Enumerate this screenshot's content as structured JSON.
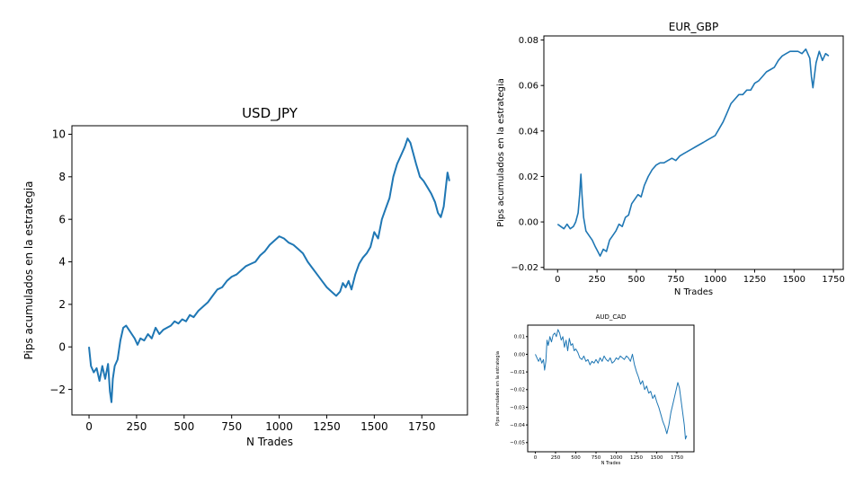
{
  "chart_data": [
    {
      "type": "line",
      "title": "USD_JPY",
      "xlabel": "N Trades",
      "ylabel": "Pips acumulados en la estrategia",
      "xlim": [
        -90,
        1990
      ],
      "ylim": [
        -3.2,
        10.4
      ],
      "xticks": [
        0,
        250,
        500,
        750,
        1000,
        1250,
        1500,
        1750
      ],
      "yticks": [
        -2,
        0,
        2,
        4,
        6,
        8,
        10
      ],
      "xtick_labels": [
        "0",
        "250",
        "500",
        "750",
        "1000",
        "1250",
        "1500",
        "1750"
      ],
      "ytick_labels": [
        "−2",
        "0",
        "2",
        "4",
        "6",
        "8",
        "10"
      ],
      "grid": false,
      "series": [
        {
          "color": "#1f77b4",
          "x": [
            0,
            10,
            25,
            40,
            55,
            70,
            85,
            100,
            110,
            118,
            125,
            135,
            150,
            165,
            180,
            195,
            210,
            225,
            240,
            255,
            270,
            290,
            310,
            330,
            350,
            370,
            390,
            410,
            430,
            450,
            470,
            490,
            510,
            530,
            550,
            575,
            600,
            625,
            650,
            675,
            700,
            725,
            750,
            775,
            800,
            825,
            850,
            875,
            900,
            925,
            950,
            975,
            1000,
            1025,
            1050,
            1075,
            1100,
            1125,
            1150,
            1175,
            1200,
            1225,
            1250,
            1275,
            1300,
            1320,
            1335,
            1350,
            1365,
            1380,
            1400,
            1420,
            1440,
            1460,
            1480,
            1500,
            1520,
            1540,
            1560,
            1580,
            1600,
            1620,
            1640,
            1660,
            1675,
            1690,
            1705,
            1720,
            1740,
            1760,
            1780,
            1800,
            1820,
            1835,
            1850,
            1865,
            1875,
            1885,
            1895
          ],
          "y": [
            0.0,
            -0.9,
            -1.2,
            -1.0,
            -1.6,
            -0.9,
            -1.5,
            -0.8,
            -2.1,
            -2.6,
            -1.5,
            -0.9,
            -0.6,
            0.3,
            0.9,
            1.0,
            0.8,
            0.6,
            0.4,
            0.1,
            0.4,
            0.3,
            0.6,
            0.4,
            0.9,
            0.6,
            0.8,
            0.9,
            1.0,
            1.2,
            1.1,
            1.3,
            1.2,
            1.5,
            1.4,
            1.7,
            1.9,
            2.1,
            2.4,
            2.7,
            2.8,
            3.1,
            3.3,
            3.4,
            3.6,
            3.8,
            3.9,
            4.0,
            4.3,
            4.5,
            4.8,
            5.0,
            5.2,
            5.1,
            4.9,
            4.8,
            4.6,
            4.4,
            4.0,
            3.7,
            3.4,
            3.1,
            2.8,
            2.6,
            2.4,
            2.6,
            3.0,
            2.8,
            3.1,
            2.7,
            3.4,
            3.9,
            4.2,
            4.4,
            4.7,
            5.4,
            5.1,
            6.0,
            6.5,
            7.0,
            8.0,
            8.6,
            9.0,
            9.4,
            9.8,
            9.6,
            9.1,
            8.6,
            8.0,
            7.8,
            7.5,
            7.2,
            6.8,
            6.3,
            6.1,
            6.6,
            7.4,
            8.2,
            7.8
          ]
        }
      ]
    },
    {
      "type": "line",
      "title": "EUR_GBP",
      "xlabel": "N Trades",
      "ylabel": "Pips acumulados en la estrategia",
      "xlim": [
        -87,
        1812
      ],
      "ylim": [
        -0.0209,
        0.0818
      ],
      "xticks": [
        0,
        250,
        500,
        750,
        1000,
        1250,
        1500,
        1750
      ],
      "yticks": [
        -0.02,
        0.0,
        0.02,
        0.04,
        0.06,
        0.08
      ],
      "xtick_labels": [
        "0",
        "250",
        "500",
        "750",
        "1000",
        "1250",
        "1500",
        "1750"
      ],
      "ytick_labels": [
        "−0.02",
        "0.00",
        "0.02",
        "0.04",
        "0.06",
        "0.08"
      ],
      "grid": false,
      "series": [
        {
          "color": "#1f77b4",
          "x": [
            0,
            20,
            40,
            60,
            80,
            100,
            115,
            130,
            140,
            148,
            155,
            165,
            180,
            200,
            220,
            240,
            255,
            270,
            290,
            310,
            330,
            350,
            370,
            390,
            410,
            430,
            450,
            470,
            490,
            510,
            530,
            550,
            575,
            600,
            625,
            650,
            675,
            700,
            725,
            750,
            775,
            800,
            825,
            850,
            875,
            900,
            925,
            950,
            975,
            1000,
            1025,
            1050,
            1075,
            1100,
            1125,
            1150,
            1175,
            1200,
            1225,
            1250,
            1275,
            1300,
            1325,
            1350,
            1375,
            1400,
            1425,
            1450,
            1475,
            1500,
            1525,
            1550,
            1575,
            1600,
            1610,
            1620,
            1640,
            1660,
            1680,
            1700,
            1720
          ],
          "y": [
            -0.001,
            -0.002,
            -0.003,
            -0.001,
            -0.003,
            -0.002,
            0.0,
            0.004,
            0.012,
            0.021,
            0.012,
            0.002,
            -0.004,
            -0.006,
            -0.008,
            -0.011,
            -0.013,
            -0.015,
            -0.012,
            -0.013,
            -0.008,
            -0.006,
            -0.004,
            -0.001,
            -0.002,
            0.002,
            0.003,
            0.008,
            0.01,
            0.012,
            0.011,
            0.016,
            0.02,
            0.023,
            0.025,
            0.026,
            0.026,
            0.027,
            0.028,
            0.027,
            0.029,
            0.03,
            0.031,
            0.032,
            0.033,
            0.034,
            0.035,
            0.036,
            0.037,
            0.038,
            0.041,
            0.044,
            0.048,
            0.052,
            0.054,
            0.056,
            0.056,
            0.058,
            0.058,
            0.061,
            0.062,
            0.064,
            0.066,
            0.067,
            0.068,
            0.071,
            0.073,
            0.074,
            0.075,
            0.075,
            0.075,
            0.074,
            0.076,
            0.072,
            0.064,
            0.059,
            0.07,
            0.075,
            0.071,
            0.074,
            0.073
          ]
        }
      ]
    },
    {
      "type": "line",
      "title": "AUD_CAD",
      "xlabel": "N Trades",
      "ylabel": "Pips acumulados en la estrategia",
      "xlim": [
        -94,
        1960
      ],
      "ylim": [
        -0.0552,
        0.0165
      ],
      "xticks": [
        0,
        250,
        500,
        750,
        1000,
        1250,
        1500,
        1750
      ],
      "yticks": [
        -0.05,
        -0.04,
        -0.03,
        -0.02,
        -0.01,
        0.0,
        0.01
      ],
      "xtick_labels": [
        "0",
        "250",
        "500",
        "750",
        "1000",
        "1250",
        "1500",
        "1750"
      ],
      "ytick_labels": [
        "−0.05",
        "−0.04",
        "−0.03",
        "−0.02",
        "−0.01",
        "0.00",
        "0.01"
      ],
      "grid": false,
      "series": [
        {
          "color": "#1f77b4",
          "x": [
            0,
            20,
            40,
            60,
            80,
            100,
            115,
            130,
            145,
            160,
            180,
            200,
            220,
            240,
            260,
            280,
            300,
            320,
            340,
            360,
            380,
            400,
            420,
            440,
            460,
            480,
            500,
            525,
            550,
            575,
            600,
            625,
            650,
            675,
            700,
            725,
            750,
            775,
            800,
            825,
            850,
            875,
            900,
            925,
            950,
            975,
            1000,
            1025,
            1050,
            1075,
            1100,
            1125,
            1150,
            1175,
            1200,
            1225,
            1250,
            1275,
            1300,
            1325,
            1350,
            1375,
            1400,
            1425,
            1450,
            1475,
            1500,
            1525,
            1550,
            1575,
            1600,
            1625,
            1650,
            1675,
            1700,
            1720,
            1740,
            1760,
            1780,
            1800,
            1820,
            1840,
            1855,
            1870
          ],
          "y": [
            0.0,
            -0.002,
            -0.004,
            -0.002,
            -0.005,
            -0.003,
            -0.009,
            -0.004,
            0.008,
            0.005,
            0.01,
            0.007,
            0.011,
            0.012,
            0.01,
            0.014,
            0.012,
            0.008,
            0.01,
            0.004,
            0.008,
            0.002,
            0.009,
            0.005,
            0.006,
            0.002,
            0.003,
            0.001,
            -0.002,
            -0.003,
            -0.001,
            -0.004,
            -0.003,
            -0.006,
            -0.004,
            -0.005,
            -0.003,
            -0.005,
            -0.002,
            -0.004,
            -0.001,
            -0.003,
            -0.004,
            -0.002,
            -0.005,
            -0.004,
            -0.002,
            -0.003,
            -0.001,
            -0.002,
            -0.003,
            -0.001,
            -0.002,
            -0.004,
            0.0,
            -0.006,
            -0.01,
            -0.013,
            -0.017,
            -0.015,
            -0.02,
            -0.018,
            -0.022,
            -0.021,
            -0.025,
            -0.023,
            -0.027,
            -0.03,
            -0.034,
            -0.038,
            -0.041,
            -0.045,
            -0.04,
            -0.033,
            -0.028,
            -0.024,
            -0.02,
            -0.016,
            -0.019,
            -0.026,
            -0.033,
            -0.04,
            -0.048,
            -0.046
          ]
        }
      ]
    }
  ]
}
